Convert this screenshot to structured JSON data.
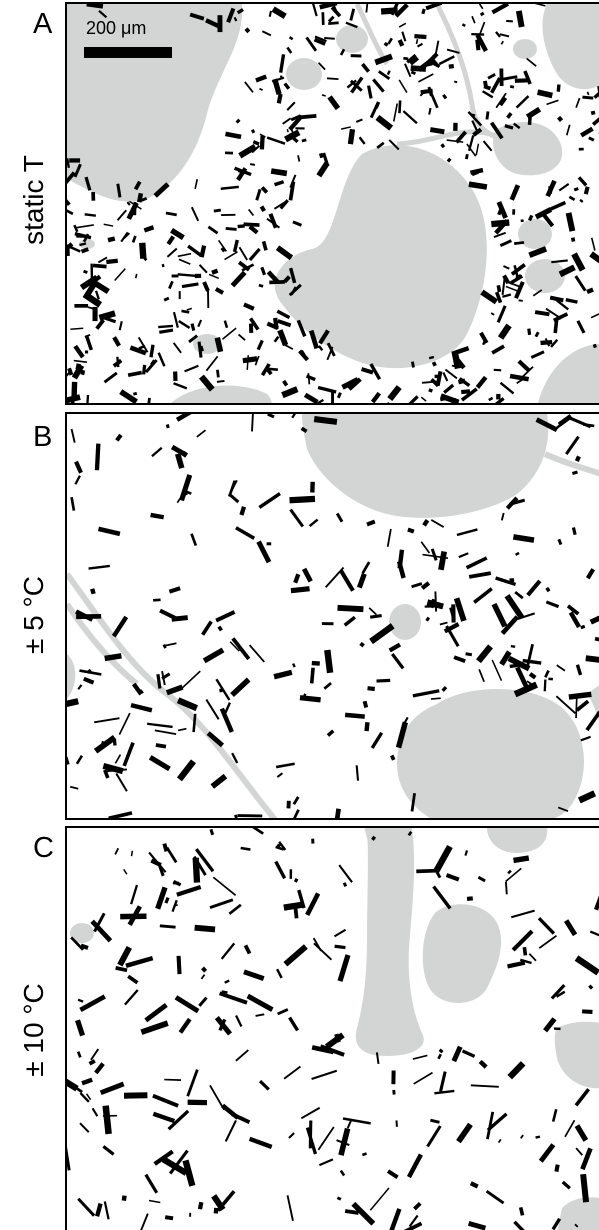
{
  "scale_bar": {
    "label": "200 μm"
  },
  "colors": {
    "vesicle": "#d3d5d4",
    "crystal": "#000000",
    "melt": "#ffffff",
    "frame": "#000000"
  },
  "panels": [
    {
      "id": "A",
      "letter": "A",
      "condition": "static T"
    },
    {
      "id": "B",
      "letter": "B",
      "condition": "± 5 °C"
    },
    {
      "id": "C",
      "letter": "C",
      "condition": "± 10 °C"
    }
  ]
}
